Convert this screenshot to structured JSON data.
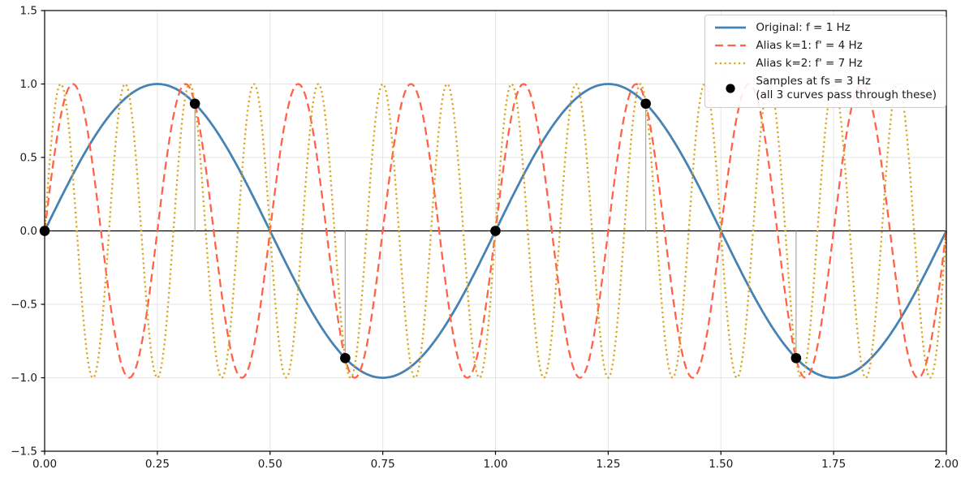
{
  "figure": {
    "background_color": "#ffffff",
    "text_color": "#1a1a1a"
  },
  "chart_data": {
    "type": "line",
    "title": "",
    "xlabel": "",
    "ylabel": "",
    "xlim": [
      0,
      2
    ],
    "ylim": [
      -1.5,
      1.5
    ],
    "grid": true,
    "grid_color": "#e5e5e5",
    "axis_color": "#000000",
    "legend_position": "upper right",
    "x_ticks": [
      {
        "value": 0.0,
        "label": "0.00"
      },
      {
        "value": 0.25,
        "label": "0.25"
      },
      {
        "value": 0.5,
        "label": "0.50"
      },
      {
        "value": 0.75,
        "label": "0.75"
      },
      {
        "value": 1.0,
        "label": "1.00"
      },
      {
        "value": 1.25,
        "label": "1.25"
      },
      {
        "value": 1.5,
        "label": "1.50"
      },
      {
        "value": 1.75,
        "label": "1.75"
      },
      {
        "value": 2.0,
        "label": "2.00"
      }
    ],
    "y_ticks": [
      {
        "value": 1.5,
        "label": "1.5"
      },
      {
        "value": 1.0,
        "label": "1.0"
      },
      {
        "value": 0.5,
        "label": "0.5"
      },
      {
        "value": 0.0,
        "label": "0.0"
      },
      {
        "value": -0.5,
        "label": "−0.5"
      },
      {
        "value": -1.0,
        "label": "−1.0"
      },
      {
        "value": -1.5,
        "label": "−1.5"
      }
    ],
    "zero_line": {
      "y": 0,
      "color": "#000000"
    },
    "series": [
      {
        "name": "Original: f = 1 Hz",
        "shape": "sine",
        "freq_hz": 1,
        "amplitude": 1,
        "color": "#4682b4",
        "line_style": "solid",
        "line_width": 2.8
      },
      {
        "name": "Alias k=1: f' = 4 Hz",
        "shape": "sine",
        "freq_hz": 4,
        "amplitude": 1,
        "color": "#ff6347",
        "line_style": "dashed",
        "line_width": 2.3
      },
      {
        "name": "Alias k=2: f' = 7 Hz",
        "shape": "sine",
        "freq_hz": 7,
        "amplitude": 1,
        "color": "#daa520",
        "line_style": "dotted",
        "line_width": 2.3
      }
    ],
    "samples": {
      "label": "Samples at fs = 3 Hz",
      "sublabel": "(all 3 curves pass through these)",
      "fs_hz": 3,
      "marker_color": "#000000",
      "stem_color": "#a6a6a6",
      "points": [
        {
          "t": 0.0,
          "y": 0.0
        },
        {
          "t": 0.3333,
          "y": 0.866
        },
        {
          "t": 0.6667,
          "y": -0.866
        },
        {
          "t": 1.0,
          "y": 0.0
        },
        {
          "t": 1.3333,
          "y": 0.866
        },
        {
          "t": 1.6667,
          "y": -0.866
        }
      ]
    }
  }
}
